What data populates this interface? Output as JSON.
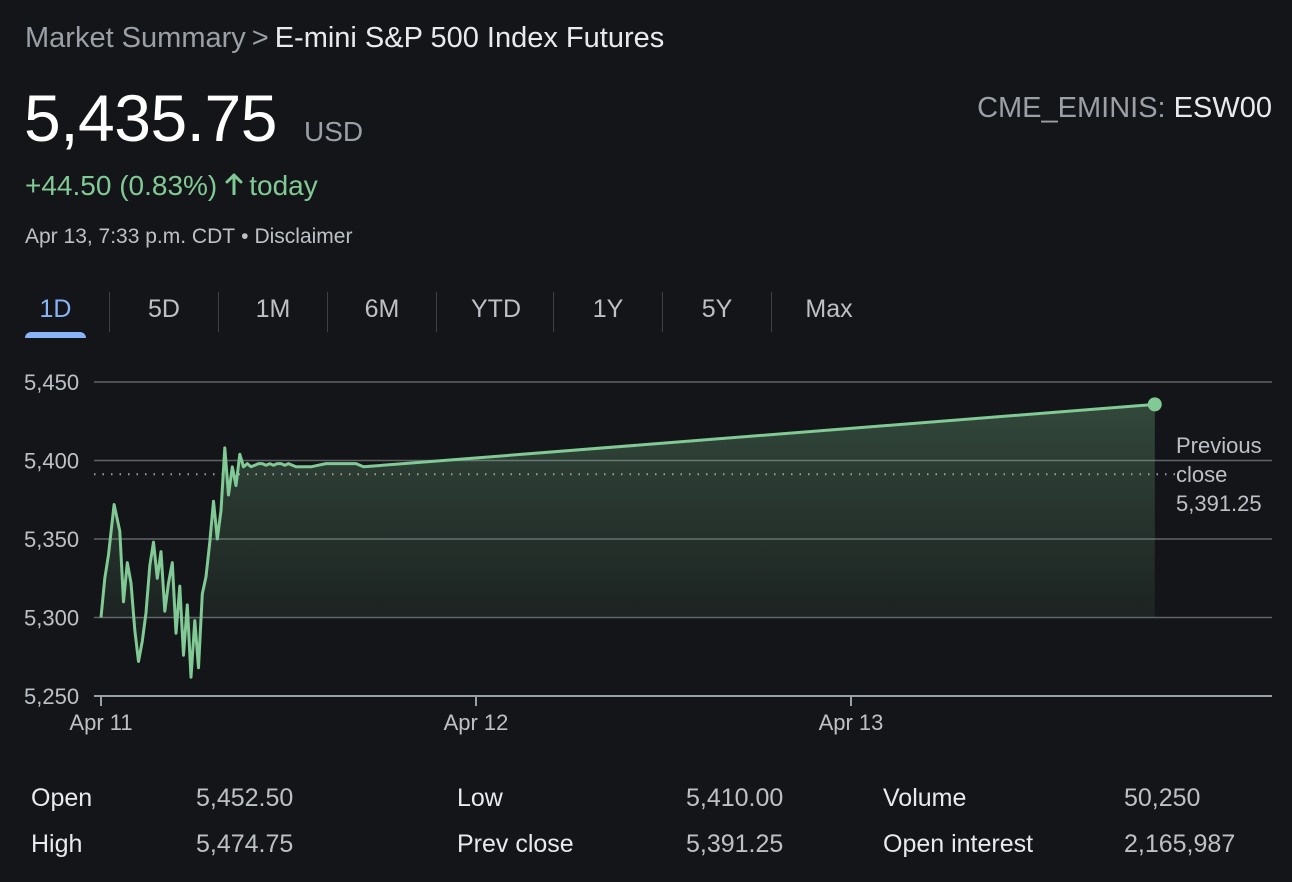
{
  "breadcrumb": {
    "root": "Market Summary",
    "separator": ">",
    "current": "E-mini S&P 500 Index Futures"
  },
  "quote": {
    "price": "5,435.75",
    "currency": "USD",
    "exchange": "CME_EMINIS:",
    "symbol": "ESW00",
    "change": "+44.50 (0.83%)",
    "change_suffix": "today",
    "timestamp": "Apr 13, 7:33 p.m. CDT",
    "disclaimer": "Disclaimer"
  },
  "tabs": [
    {
      "label": "1D",
      "active": true
    },
    {
      "label": "5D",
      "active": false
    },
    {
      "label": "1M",
      "active": false
    },
    {
      "label": "6M",
      "active": false
    },
    {
      "label": "YTD",
      "active": false
    },
    {
      "label": "1Y",
      "active": false
    },
    {
      "label": "5Y",
      "active": false
    },
    {
      "label": "Max",
      "active": false
    }
  ],
  "colors": {
    "line": "#81c995",
    "accent": "#8ab4f8",
    "background": "#141518",
    "grid": "#5f6368"
  },
  "chart_data": {
    "type": "area",
    "y_ticks": [
      "5,450",
      "5,400",
      "5,350",
      "5,300",
      "5,250"
    ],
    "y_tick_values": [
      5450,
      5400,
      5350,
      5300,
      5250
    ],
    "ylim": [
      5250,
      5450
    ],
    "x_ticks": [
      "Apr 11",
      "Apr 12",
      "Apr 13"
    ],
    "x_tick_values": [
      0,
      1,
      2
    ],
    "x_units": "days since Apr 11 00:00",
    "previous_close": {
      "label_line1": "Previous",
      "label_line2": "close",
      "label_value": "5,391.25",
      "value": 5391.25
    },
    "series": [
      {
        "x": [
          0.0,
          0.01,
          0.02,
          0.035,
          0.05,
          0.06,
          0.07,
          0.08,
          0.09,
          0.1,
          0.11,
          0.12,
          0.13,
          0.14,
          0.15,
          0.16,
          0.17,
          0.18,
          0.19,
          0.2,
          0.21,
          0.22,
          0.23,
          0.24,
          0.25,
          0.26,
          0.27,
          0.28,
          0.29,
          0.3,
          0.31,
          0.32,
          0.33,
          0.34,
          0.35,
          0.36,
          0.37,
          0.38,
          0.39,
          0.4,
          0.41,
          0.42,
          0.43,
          0.44,
          0.45,
          0.46,
          0.47,
          0.48,
          0.49,
          0.5,
          0.51,
          0.52,
          0.53,
          0.54,
          0.55,
          0.56,
          0.58,
          0.6,
          0.62,
          0.64,
          0.66,
          0.68,
          0.7,
          2.81
        ],
        "y": [
          5300,
          5325,
          5340,
          5372,
          5355,
          5310,
          5335,
          5322,
          5292,
          5272,
          5285,
          5303,
          5333,
          5348,
          5325,
          5342,
          5304,
          5322,
          5335,
          5290,
          5320,
          5276,
          5308,
          5262,
          5298,
          5268,
          5315,
          5326,
          5348,
          5374,
          5350,
          5368,
          5408,
          5378,
          5396,
          5384,
          5404,
          5396,
          5398,
          5396,
          5397,
          5398,
          5398,
          5397,
          5398,
          5397,
          5398,
          5398,
          5397,
          5398,
          5397,
          5396,
          5396,
          5396,
          5396,
          5396,
          5397,
          5398,
          5398,
          5398,
          5398,
          5398,
          5396,
          5435.75
        ]
      }
    ]
  },
  "stats": [
    {
      "label": "Open",
      "value": "5,452.50"
    },
    {
      "label": "High",
      "value": "5,474.75"
    },
    {
      "label": "Low",
      "value": "5,410.00"
    },
    {
      "label": "Prev close",
      "value": "5,391.25"
    },
    {
      "label": "Volume",
      "value": "50,250"
    },
    {
      "label": "Open interest",
      "value": "2,165,987"
    }
  ]
}
